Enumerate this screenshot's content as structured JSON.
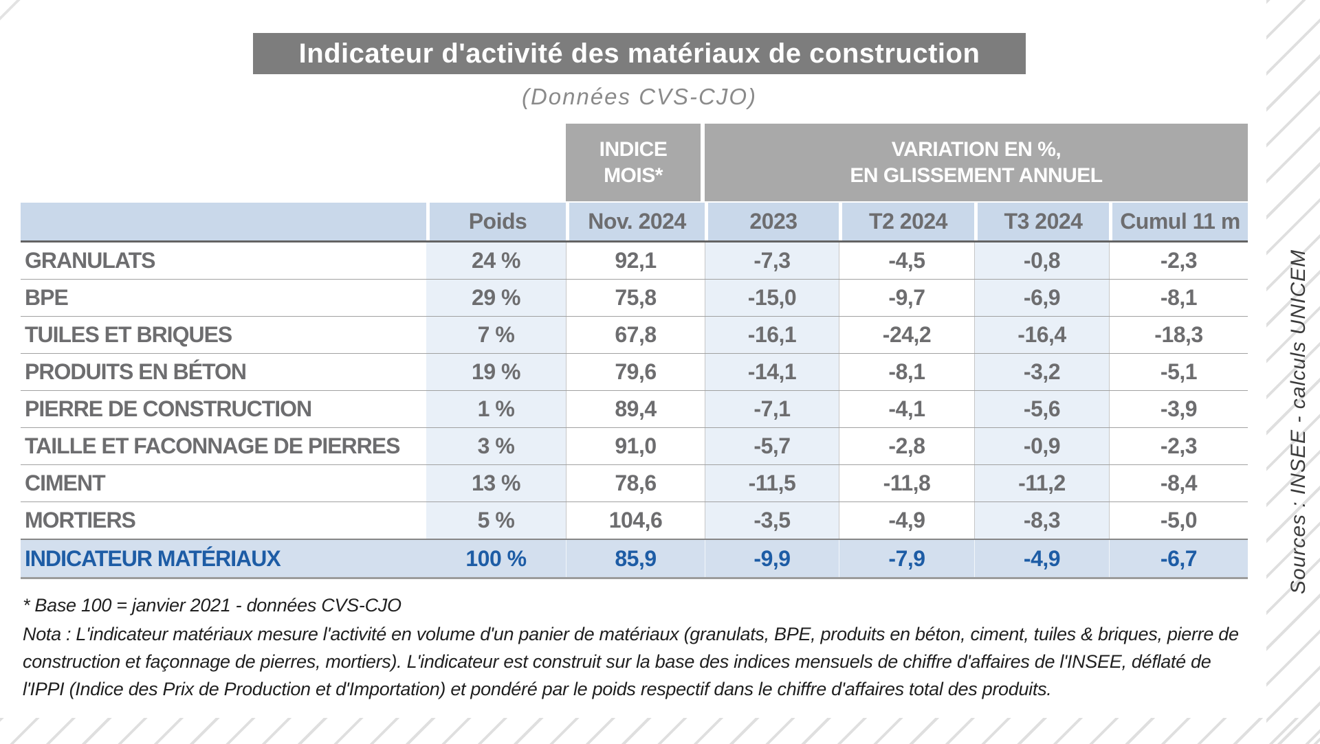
{
  "title": "Indicateur d'activité des matériaux de construction",
  "subtitle": "(Données CVS-CJO)",
  "table": {
    "group": {
      "indice_line1": "INDICE",
      "indice_line2": "MOIS*",
      "variation_line1": "VARIATION EN %,",
      "variation_line2": "EN GLISSEMENT ANNUEL"
    },
    "columns": [
      "Poids",
      "Nov. 2024",
      "2023",
      "T2 2024",
      "T3 2024",
      "Cumul 11 m"
    ],
    "rows": [
      {
        "label": "GRANULATS",
        "poids": "24 %",
        "indice": "92,1",
        "y2023": "-7,3",
        "t2": "-4,5",
        "t3": "-0,8",
        "cumul": "-2,3"
      },
      {
        "label": "BPE",
        "poids": "29 %",
        "indice": "75,8",
        "y2023": "-15,0",
        "t2": "-9,7",
        "t3": "-6,9",
        "cumul": "-8,1"
      },
      {
        "label": "TUILES ET BRIQUES",
        "poids": "7 %",
        "indice": "67,8",
        "y2023": "-16,1",
        "t2": "-24,2",
        "t3": "-16,4",
        "cumul": "-18,3"
      },
      {
        "label": "PRODUITS EN BÉTON",
        "poids": "19 %",
        "indice": "79,6",
        "y2023": "-14,1",
        "t2": "-8,1",
        "t3": "-3,2",
        "cumul": "-5,1"
      },
      {
        "label": "PIERRE DE CONSTRUCTION",
        "poids": "1 %",
        "indice": "89,4",
        "y2023": "-7,1",
        "t2": "-4,1",
        "t3": "-5,6",
        "cumul": "-3,9"
      },
      {
        "label": "TAILLE ET FACONNAGE DE PIERRES",
        "poids": "3 %",
        "indice": "91,0",
        "y2023": "-5,7",
        "t2": "-2,8",
        "t3": "-0,9",
        "cumul": "-2,3"
      },
      {
        "label": "CIMENT",
        "poids": "13 %",
        "indice": "78,6",
        "y2023": "-11,5",
        "t2": "-11,8",
        "t3": "-11,2",
        "cumul": "-8,4"
      },
      {
        "label": "MORTIERS",
        "poids": "5 %",
        "indice": "104,6",
        "y2023": "-3,5",
        "t2": "-4,9",
        "t3": "-8,3",
        "cumul": "-5,0"
      }
    ],
    "total": {
      "label": "INDICATEUR MATÉRIAUX",
      "poids": "100 %",
      "indice": "85,9",
      "y2023": "-9,9",
      "t2": "-7,9",
      "t3": "-4,9",
      "cumul": "-6,7"
    }
  },
  "notes": {
    "base": "* Base 100 = janvier 2021 - données CVS-CJO",
    "nota": "Nota :  L'indicateur matériaux mesure l'activité en volume d'un panier de matériaux (granulats, BPE, produits en béton, ciment, tuiles & briques, pierre de construction et façonnage de pierres, mortiers). L'indicateur est construit sur la base des indices mensuels de chiffre d'affaires de l'INSEE, déflaté de l'IPPI (Indice des Prix de Production et d'Importation) et pondéré par le poids respectif dans le chiffre d'affaires total des produits."
  },
  "source": "Sources : INSEE - calculs UNICEM",
  "colors": {
    "banner_bg": "#7d7d7d",
    "group_header_bg": "#a9a9a9",
    "header_row_bg": "#c9d8ea",
    "column_shade_bg": "#e9f0f8",
    "total_row_bg": "#d3dfee",
    "total_text": "#1d5ca5",
    "data_text": "#6d6d6f"
  }
}
